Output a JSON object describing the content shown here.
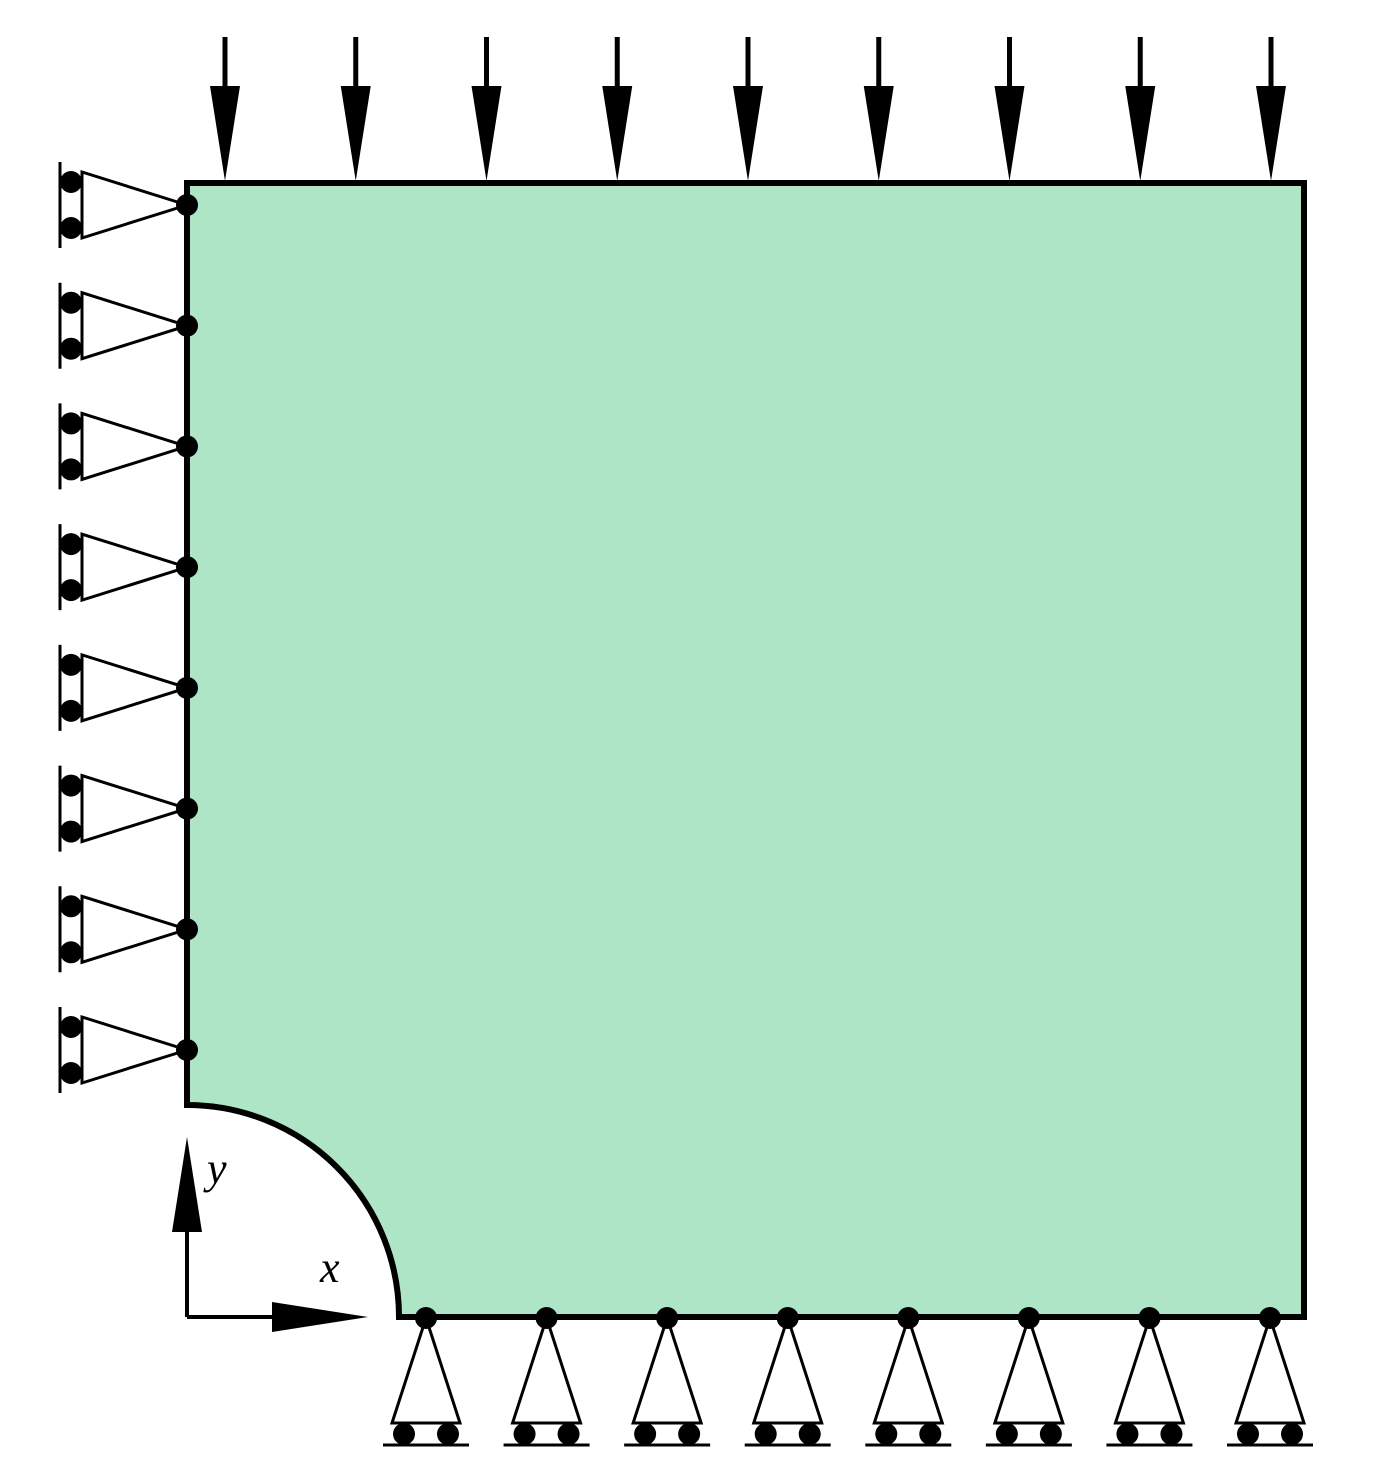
{
  "diagram": {
    "description_type": "plane-stress quarter plate with circular hole, roller supports and distributed top load",
    "colors": {
      "plate_fill": "#aee5c7",
      "stroke": "#000000",
      "background": "#ffffff"
    },
    "axes": {
      "x_label": "x",
      "y_label": "y"
    },
    "load": {
      "arrow_count": 9,
      "direction": "down"
    },
    "left_supports": {
      "count": 8,
      "type": "roller"
    },
    "bottom_supports": {
      "count": 8,
      "type": "roller"
    }
  }
}
